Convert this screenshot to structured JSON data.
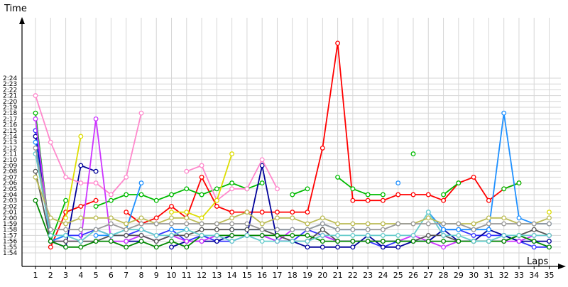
{
  "chart_data": {
    "type": "line",
    "y_axis_label": "Time",
    "x_axis_label": "Laps",
    "x_categories": [
      1,
      2,
      3,
      4,
      5,
      6,
      7,
      8,
      9,
      10,
      11,
      12,
      13,
      14,
      15,
      16,
      17,
      18,
      19,
      20,
      21,
      22,
      23,
      24,
      25,
      26,
      27,
      28,
      29,
      30,
      31,
      32,
      33,
      34,
      35
    ],
    "y_range_seconds": [
      113.5,
      145.5
    ],
    "y_tick_labels": [
      "1:54",
      "1:55",
      "1:56",
      "1:57",
      "1:58",
      "1:59",
      "2:00",
      "2:01",
      "2:02",
      "2:03",
      "2:04",
      "2:05",
      "2:06",
      "2:07",
      "2:08",
      "2:09",
      "2:10",
      "2:11",
      "2:12",
      "2:13",
      "2:14",
      "2:15",
      "2:16",
      "2:17",
      "2:18",
      "2:19",
      "2:20",
      "2:21",
      "2:22",
      "2:23",
      "2:24"
    ],
    "grid": true,
    "legend": "none",
    "series": [
      {
        "color": "#ff0000",
        "values": [
          null,
          115,
          121,
          122,
          123,
          null,
          121,
          119,
          120,
          122,
          120,
          127,
          122,
          121,
          121,
          121,
          121,
          121,
          121,
          132,
          150,
          123,
          123,
          123,
          124,
          124,
          124,
          123,
          126,
          127,
          123,
          125,
          126,
          null,
          null
        ]
      },
      {
        "color": "#00bb00",
        "values": [
          138,
          116,
          123,
          null,
          122,
          123,
          124,
          124,
          123,
          124,
          125,
          124,
          125,
          126,
          125,
          126,
          null,
          124,
          125,
          null,
          127,
          125,
          124,
          124,
          null,
          131,
          null,
          124,
          126,
          null,
          null,
          125,
          126,
          null,
          null
        ]
      },
      {
        "color": "#3333ff",
        "values": [
          135,
          116,
          117,
          117,
          118,
          117,
          117,
          118,
          117,
          118,
          116,
          117,
          116,
          116,
          117,
          117,
          116,
          116,
          118,
          117,
          116,
          116,
          116,
          115,
          116,
          116,
          116,
          118,
          118,
          117,
          117,
          117,
          116,
          115,
          115
        ]
      },
      {
        "color": "#000099",
        "values": [
          134,
          116,
          115,
          129,
          128,
          null,
          116,
          116,
          null,
          115,
          116,
          116,
          116,
          117,
          117,
          129,
          116,
          116,
          115,
          115,
          115,
          115,
          117,
          115,
          115,
          116,
          116,
          118,
          116,
          116,
          118,
          117,
          116,
          116,
          116
        ]
      },
      {
        "color": "#ff88cc",
        "values": [
          141,
          133,
          127,
          126,
          126,
          124,
          127,
          138,
          null,
          null,
          128,
          129,
          123,
          125,
          125,
          130,
          125,
          null,
          null,
          null,
          null,
          null,
          null,
          null,
          null,
          null,
          null,
          null,
          null,
          null,
          null,
          null,
          null,
          null,
          null
        ]
      },
      {
        "color": "#dddd00",
        "values": [
          null,
          null,
          120,
          134,
          null,
          null,
          null,
          null,
          null,
          121,
          121,
          120,
          123,
          131,
          null,
          null,
          null,
          null,
          null,
          null,
          null,
          null,
          null,
          null,
          null,
          null,
          null,
          null,
          null,
          null,
          null,
          null,
          null,
          null,
          121
        ]
      },
      {
        "color": "#cc33ff",
        "values": [
          137,
          116,
          116,
          116,
          137,
          116,
          116,
          117,
          116,
          117,
          116,
          116,
          117,
          117,
          117,
          117,
          116,
          118,
          null,
          117,
          116,
          116,
          116,
          116,
          116,
          117,
          116,
          115,
          116,
          116,
          116,
          116,
          116,
          117,
          117
        ]
      },
      {
        "color": "#1e90ff",
        "values": [
          133,
          116,
          117,
          null,
          117,
          117,
          118,
          126,
          null,
          118,
          118,
          null,
          null,
          118,
          118,
          118,
          118,
          118,
          118,
          119,
          118,
          118,
          118,
          null,
          126,
          null,
          121,
          118,
          118,
          118,
          118,
          138,
          120,
          119,
          119
        ]
      },
      {
        "color": "#555555",
        "values": [
          128,
          116,
          116,
          116,
          116,
          117,
          117,
          117,
          116,
          117,
          117,
          118,
          118,
          118,
          118,
          118,
          117,
          116,
          116,
          118,
          116,
          116,
          116,
          116,
          116,
          116,
          117,
          117,
          116,
          116,
          116,
          116,
          117,
          118,
          117
        ]
      },
      {
        "color": "#008800",
        "values": [
          123,
          116,
          115,
          115,
          116,
          116,
          115,
          116,
          115,
          116,
          115,
          117,
          117,
          117,
          117,
          117,
          117,
          117,
          117,
          116,
          116,
          116,
          116,
          116,
          116,
          116,
          116,
          116,
          116,
          116,
          116,
          116,
          117,
          116,
          115
        ]
      },
      {
        "color": "#66cccc",
        "values": [
          131,
          117,
          117,
          116,
          118,
          117,
          118,
          118,
          117,
          117,
          118,
          117,
          117,
          116,
          117,
          116,
          116,
          116,
          116,
          117,
          117,
          117,
          117,
          117,
          117,
          117,
          121,
          117,
          117,
          116,
          116,
          117,
          117,
          117,
          117
        ]
      },
      {
        "color": "#bbbb55",
        "values": [
          127,
          120,
          119,
          120,
          120,
          120,
          119,
          120,
          119,
          120,
          120,
          119,
          119,
          120,
          121,
          119,
          120,
          120,
          119,
          120,
          119,
          119,
          119,
          119,
          119,
          119,
          120,
          119,
          119,
          119,
          120,
          120,
          119,
          119,
          120
        ]
      },
      {
        "color": "#999999",
        "values": [
          132,
          118,
          118,
          118,
          118,
          119,
          118,
          119,
          119,
          119,
          119,
          119,
          119,
          119,
          119,
          118,
          118,
          118,
          118,
          119,
          118,
          118,
          118,
          118,
          119,
          119,
          119,
          119,
          119,
          118,
          119,
          119,
          119,
          119,
          119
        ]
      }
    ]
  }
}
